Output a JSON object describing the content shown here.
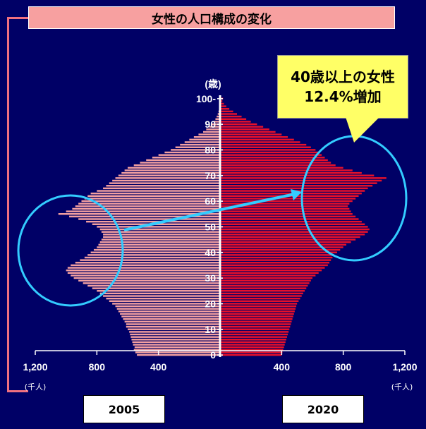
{
  "title": "女性の人口構成の変化",
  "callout": {
    "line1": "40歳以上の女性",
    "line2": "12.4%増加"
  },
  "years": {
    "left": "2005",
    "right": "2020"
  },
  "colors": {
    "left_bars": "#f4a0a0",
    "right_bars": "#e8102a",
    "arrow": "#33ccff",
    "ellipse": "#33ccff",
    "title_bg": "#f7a0a0",
    "callout_bg": "#ffff66"
  },
  "chart_data": {
    "type": "bar",
    "orientation": "horizontal",
    "title": "女性の人口構成の変化",
    "y_unit_label": "(歳)",
    "x_unit_label": "(千人)",
    "age_ticks": [
      "0",
      "10",
      "20",
      "30",
      "40",
      "50",
      "60",
      "70",
      "80",
      "90",
      "100-"
    ],
    "x_tick_labels_left": [
      "1,200",
      "800",
      "400"
    ],
    "x_tick_labels_right": [
      "400",
      "800",
      "1,200"
    ],
    "x_ticks": [
      1200,
      800,
      400
    ],
    "xlim": [
      0,
      1200
    ],
    "ages": [
      0,
      1,
      2,
      3,
      4,
      5,
      6,
      7,
      8,
      9,
      10,
      11,
      12,
      13,
      14,
      15,
      16,
      17,
      18,
      19,
      20,
      21,
      22,
      23,
      24,
      25,
      26,
      27,
      28,
      29,
      30,
      31,
      32,
      33,
      34,
      35,
      36,
      37,
      38,
      39,
      40,
      41,
      42,
      43,
      44,
      45,
      46,
      47,
      48,
      49,
      50,
      51,
      52,
      53,
      54,
      55,
      56,
      57,
      58,
      59,
      60,
      61,
      62,
      63,
      64,
      65,
      66,
      67,
      68,
      69,
      70,
      71,
      72,
      73,
      74,
      75,
      76,
      77,
      78,
      79,
      80,
      81,
      82,
      83,
      84,
      85,
      86,
      87,
      88,
      89,
      90,
      91,
      92,
      93,
      94,
      95,
      96,
      97,
      98,
      99,
      100
    ],
    "series": [
      {
        "name": "2005",
        "values": [
          540,
          550,
          560,
          555,
          565,
          570,
          575,
          580,
          585,
          590,
          600,
          610,
          610,
          620,
          630,
          640,
          650,
          660,
          670,
          680,
          700,
          720,
          740,
          760,
          780,
          800,
          830,
          860,
          890,
          920,
          950,
          970,
          990,
          1000,
          990,
          970,
          940,
          910,
          880,
          860,
          840,
          820,
          800,
          790,
          780,
          770,
          760,
          760,
          770,
          780,
          800,
          830,
          870,
          920,
          980,
          1050,
          1000,
          960,
          940,
          920,
          900,
          880,
          860,
          840,
          800,
          760,
          740,
          720,
          700,
          680,
          660,
          640,
          620,
          600,
          560,
          520,
          480,
          440,
          400,
          360,
          320,
          290,
          260,
          230,
          200,
          170,
          140,
          110,
          90,
          70,
          55,
          40,
          30,
          22,
          15,
          10,
          7,
          5,
          3,
          2,
          5
        ]
      },
      {
        "name": "2020",
        "values": [
          400,
          405,
          410,
          415,
          420,
          425,
          430,
          435,
          440,
          445,
          450,
          455,
          460,
          465,
          470,
          475,
          480,
          485,
          490,
          495,
          500,
          510,
          520,
          530,
          540,
          550,
          560,
          570,
          580,
          590,
          600,
          620,
          640,
          660,
          680,
          700,
          710,
          720,
          730,
          740,
          760,
          780,
          800,
          820,
          850,
          880,
          910,
          940,
          960,
          970,
          960,
          940,
          920,
          900,
          880,
          860,
          850,
          840,
          830,
          840,
          860,
          880,
          900,
          920,
          940,
          960,
          990,
          1020,
          1050,
          1080,
          1000,
          920,
          860,
          800,
          750,
          720,
          700,
          680,
          660,
          640,
          620,
          590,
          560,
          520,
          480,
          440,
          400,
          360,
          320,
          280,
          240,
          200,
          170,
          140,
          110,
          85,
          60,
          40,
          25,
          15,
          20
        ]
      }
    ],
    "annotation": "40歳以上の女性 12.4%増加"
  }
}
